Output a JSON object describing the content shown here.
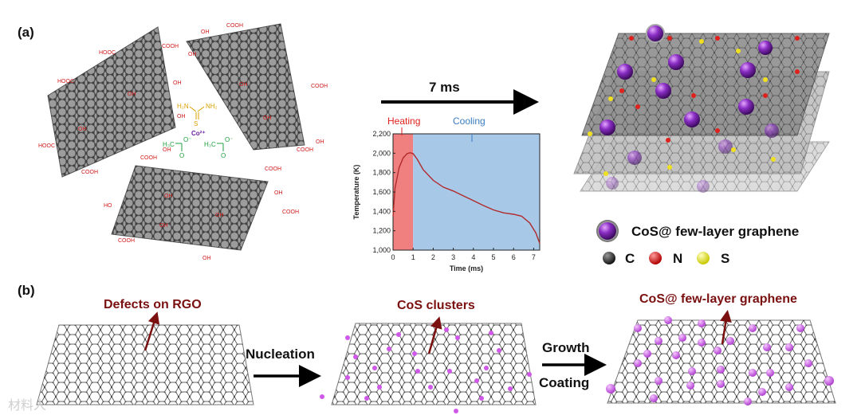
{
  "labels": {
    "panel_a": "(a)",
    "panel_b": "(b)",
    "time_arrow": "7 ms",
    "legend_title": "CoS@ few-layer graphene",
    "legend_c": "C",
    "legend_n": "N",
    "legend_s": "S",
    "defects": "Defects on RGO",
    "clusters": "CoS clusters",
    "product": "CoS@ few-layer graphene",
    "nucleation": "Nucleation",
    "growth": "Growth",
    "coating": "Coating",
    "watermark": "材料人"
  },
  "molecules": {
    "cobalt_ion": "Co²⁺",
    "thiourea_nh2_left": "H₂N",
    "thiourea_nh2_right": "NH₂",
    "thiourea_s": "S",
    "acetate_left": "H₃C",
    "acetate_right": "H₃C",
    "acetate_o": "O",
    "acetate_ominus": "O⁻"
  },
  "functional_groups": {
    "cooh": "COOH",
    "hooc": "HOOC",
    "oh": "OH",
    "ho": "HO"
  },
  "colors": {
    "red": "#e0201c",
    "purple": "#7a2cb0",
    "pink": "#d058e8",
    "maroon": "#7a1010",
    "heating": "#f08080",
    "cooling": "#a8c8e8",
    "curve": "#b02a2a"
  },
  "chart_data": {
    "type": "line",
    "title": "",
    "xlabel": "Time (ms)",
    "ylabel": "Temperature (K)",
    "xlim": [
      0,
      7.3
    ],
    "ylim": [
      1000,
      2200
    ],
    "xticks": [
      0,
      1,
      2,
      3,
      4,
      5,
      6,
      7
    ],
    "yticks": [
      1000,
      1200,
      1400,
      1600,
      1800,
      2000,
      2200
    ],
    "ytick_labels": [
      "1,000",
      "1,200",
      "1,400",
      "1,600",
      "1,800",
      "2,000",
      "2,200"
    ],
    "heating_label": "Heating",
    "cooling_label": "Cooling",
    "heating_range": [
      0,
      1
    ],
    "x": [
      0,
      0.1,
      0.3,
      0.5,
      0.7,
      0.85,
      1.0,
      1.2,
      1.5,
      2.0,
      2.5,
      3.0,
      3.5,
      4.0,
      4.5,
      5.0,
      5.5,
      6.0,
      6.4,
      6.8,
      7.1,
      7.3
    ],
    "y": [
      1350,
      1640,
      1850,
      1950,
      1995,
      2005,
      1995,
      1940,
      1830,
      1720,
      1650,
      1610,
      1560,
      1510,
      1460,
      1415,
      1385,
      1370,
      1350,
      1280,
      1180,
      1070
    ]
  }
}
